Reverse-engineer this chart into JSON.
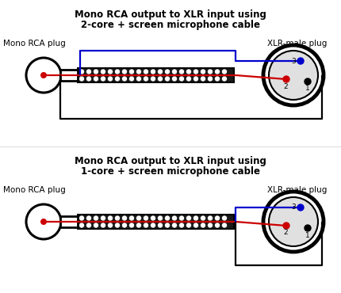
{
  "title1_line1": "Mono RCA output to XLR input using",
  "title1_line2": "2-core + screen microphone cable",
  "title2_line1": "Mono RCA output to XLR input using",
  "title2_line2": "1-core + screen microphone cable",
  "label_rca": "Mono RCA plug",
  "label_xlr": "XLR-male plug",
  "bg_color": "#ffffff",
  "text_color": "#000000",
  "red_color": "#cc0000",
  "blue_color": "#0000cc",
  "black_color": "#000000",
  "xlr_fill": "#e0e0e0",
  "cable_fill": "#1a1a1a",
  "dot_color": "#ffffff"
}
